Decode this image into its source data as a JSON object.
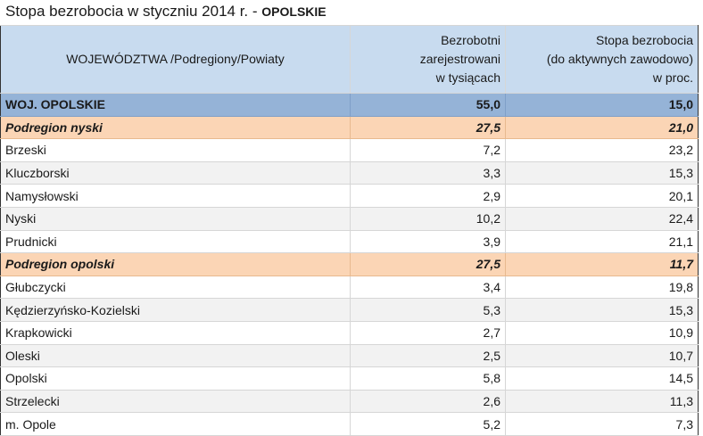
{
  "title": {
    "main": "Stopa bezrobocia w styczniu 2014 r. -",
    "region": "OPOLSKIE"
  },
  "table": {
    "headers": {
      "name": "WOJEWÓDZTWA /Podregiony/Powiaty",
      "registered": [
        "Bezrobotni",
        "zarejestrowani",
        "w tysiącach"
      ],
      "rate": [
        "Stopa bezrobocia",
        "(do aktywnych zawodowo)",
        "w proc."
      ]
    },
    "rows": [
      {
        "type": "woj",
        "name": "WOJ. OPOLSKIE",
        "registered": "55,0",
        "rate": "15,0"
      },
      {
        "type": "sub",
        "name": "Podregion nyski",
        "registered": "27,5",
        "rate": "21,0"
      },
      {
        "type": "pow",
        "name": "Brzeski",
        "registered": "7,2",
        "rate": "23,2"
      },
      {
        "type": "pow",
        "name": "Kluczborski",
        "registered": "3,3",
        "rate": "15,3"
      },
      {
        "type": "pow",
        "name": "Namysłowski",
        "registered": "2,9",
        "rate": "20,1"
      },
      {
        "type": "pow",
        "name": "Nyski",
        "registered": "10,2",
        "rate": "22,4"
      },
      {
        "type": "pow",
        "name": "Prudnicki",
        "registered": "3,9",
        "rate": "21,1"
      },
      {
        "type": "sub",
        "name": "Podregion opolski",
        "registered": "27,5",
        "rate": "11,7"
      },
      {
        "type": "pow",
        "name": "Głubczycki",
        "registered": "3,4",
        "rate": "19,8"
      },
      {
        "type": "pow",
        "name": "Kędzierzyńsko-Kozielski",
        "registered": "5,3",
        "rate": "15,3"
      },
      {
        "type": "pow",
        "name": "Krapkowicki",
        "registered": "2,7",
        "rate": "10,9"
      },
      {
        "type": "pow",
        "name": "Oleski",
        "registered": "2,5",
        "rate": "10,7"
      },
      {
        "type": "pow",
        "name": "Opolski",
        "registered": "5,8",
        "rate": "14,5"
      },
      {
        "type": "pow",
        "name": "Strzelecki",
        "registered": "2,6",
        "rate": "11,3"
      },
      {
        "type": "pow",
        "name": "m. Opole",
        "registered": "5,2",
        "rate": "7,3"
      }
    ]
  },
  "colors": {
    "header_bg": "#c8dbef",
    "woj_row_bg": "#95b3d7",
    "subregion_row_bg": "#fbd5b5",
    "alt_row_bg": "#f2f2f2"
  }
}
